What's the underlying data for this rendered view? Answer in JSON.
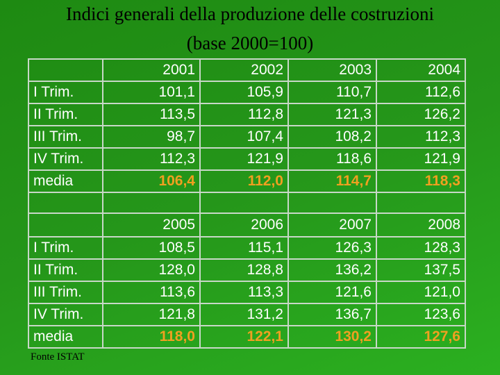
{
  "title": [
    "Indici generali della produzione delle costruzioni",
    "(base 2000=100)"
  ],
  "tables": [
    {
      "years": [
        "2001",
        "2002",
        "2003",
        "2004"
      ],
      "rows": [
        {
          "label": "I Trim.",
          "values": [
            "101,1",
            "105,9",
            "110,7",
            "112,6"
          ]
        },
        {
          "label": "II Trim.",
          "values": [
            "113,5",
            "112,8",
            "121,3",
            "126,2"
          ]
        },
        {
          "label": "III Trim.",
          "values": [
            "98,7",
            "107,4",
            "108,2",
            "112,3"
          ]
        },
        {
          "label": "IV Trim.",
          "values": [
            "112,3",
            "121,9",
            "118,6",
            "121,9"
          ]
        },
        {
          "label": "media",
          "values": [
            "106,4",
            "112,0",
            "114,7",
            "118,3"
          ]
        }
      ]
    },
    {
      "years": [
        "2005",
        "2006",
        "2007",
        "2008"
      ],
      "rows": [
        {
          "label": "I Trim.",
          "values": [
            "108,5",
            "115,1",
            "126,3",
            "128,3"
          ]
        },
        {
          "label": "II Trim.",
          "values": [
            "128,0",
            "128,8",
            "136,2",
            "137,5"
          ]
        },
        {
          "label": "III Trim.",
          "values": [
            "113,6",
            "113,3",
            "121,6",
            "121,0"
          ]
        },
        {
          "label": "IV Trim.",
          "values": [
            "121,8",
            "131,2",
            "136,7",
            "123,6"
          ]
        },
        {
          "label": "media",
          "values": [
            "118,0",
            "122,1",
            "130,2",
            "127,6"
          ]
        }
      ]
    }
  ],
  "footer": "Fonte ISTAT"
}
